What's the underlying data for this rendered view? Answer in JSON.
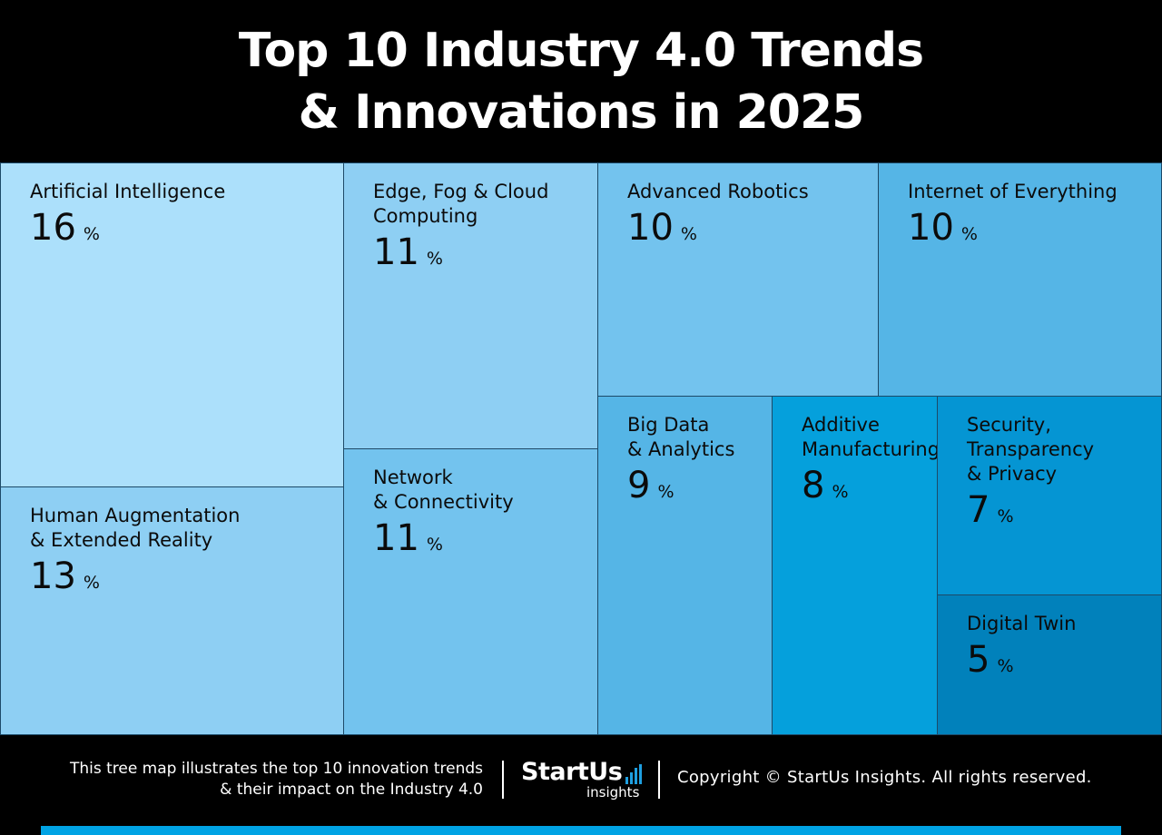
{
  "header": {
    "title_line1": "Top 10 Industry 4.0 Trends",
    "title_line2": "& Innovations in 2025"
  },
  "chart_data": {
    "type": "treemap",
    "unit": "%",
    "items": [
      {
        "label": "Artificial Intelligence",
        "value": 16,
        "color": "#ace0fb"
      },
      {
        "label": "Human Augmentation\n& Extended Reality",
        "value": 13,
        "color": "#8ecff3"
      },
      {
        "label": "Edge, Fog & Cloud\nComputing",
        "value": 11,
        "color": "#8ecff3"
      },
      {
        "label": "Network\n& Connectivity",
        "value": 11,
        "color": "#73c3ee"
      },
      {
        "label": "Advanced Robotics",
        "value": 10,
        "color": "#73c3ee"
      },
      {
        "label": "Internet of Everything",
        "value": 10,
        "color": "#55b5e6"
      },
      {
        "label": "Big Data\n& Analytics",
        "value": 9,
        "color": "#55b5e6"
      },
      {
        "label": "Additive\nManufacturing",
        "value": 8,
        "color": "#05a0dc"
      },
      {
        "label": "Security,\nTransparency\n& Privacy",
        "value": 7,
        "color": "#0595d3"
      },
      {
        "label": "Digital Twin",
        "value": 5,
        "color": "#0181bb"
      }
    ]
  },
  "footer": {
    "description": "This tree map illustrates the top 10 innovation trends\n& their impact on the Industry 4.0",
    "logo_main": "StartUs",
    "logo_sub": "insights",
    "copyright": "Copyright © StartUs Insights. All rights reserved.",
    "accent_color": "#00a3e4"
  }
}
